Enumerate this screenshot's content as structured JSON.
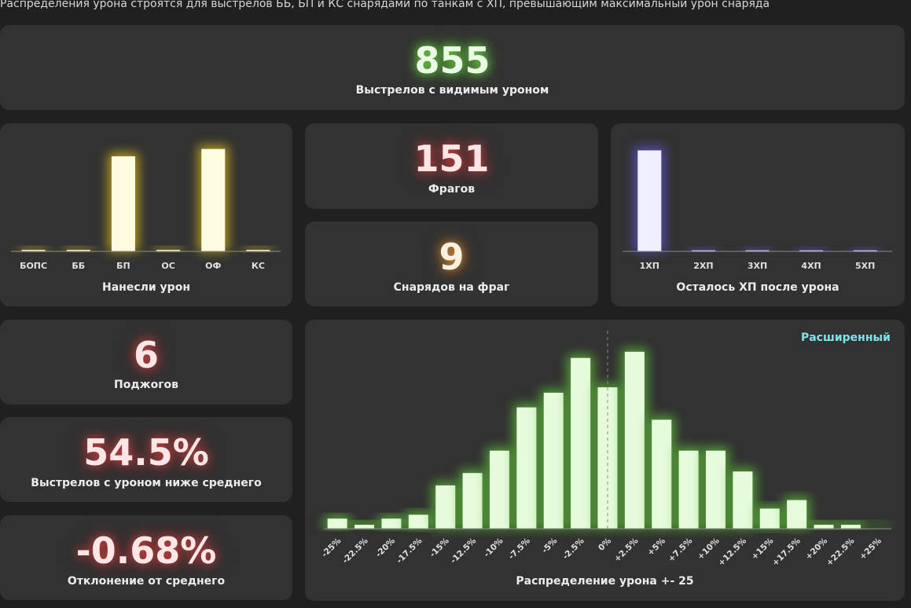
{
  "note": "Распределения урона строятся для выстрелов ББ, БП и КС снарядами по танкам с ХП, превышающим максимальный урон снаряда",
  "shots_visible": {
    "value": "855",
    "label": "Выстрелов с видимым уроном"
  },
  "frags": {
    "value": "151",
    "label": "Фрагов"
  },
  "shells_per_frag": {
    "value": "9",
    "label": "Снарядов на фраг"
  },
  "fires": {
    "value": "6",
    "label": "Поджогов"
  },
  "below_avg": {
    "value": "54.5%",
    "label": "Выстрелов с уроном ниже среднего"
  },
  "deviation": {
    "value": "-0.68%",
    "label": "Отклонение от среднего"
  },
  "dist_toggle": "Расширенный",
  "colors": {
    "card": "#323232",
    "bg": "#202020",
    "yellow_bar": "#fffbe0",
    "blue_bar": "#eef0ff",
    "green_bar": "#e6fbdc",
    "link": "#7fe3ea"
  },
  "chart_data": [
    {
      "type": "bar",
      "title": "Нанесли урон",
      "categories": [
        "БОПС",
        "ББ",
        "БП",
        "ОС",
        "ОФ",
        "КС"
      ],
      "values": [
        2,
        2,
        130,
        2,
        140,
        2
      ],
      "ylim": [
        0,
        145
      ]
    },
    {
      "type": "bar",
      "title": "Осталось ХП после урона",
      "categories": [
        "1ХП",
        "2ХП",
        "3ХП",
        "4ХП",
        "5ХП"
      ],
      "values": [
        100,
        1,
        1,
        1,
        1
      ],
      "ylim": [
        0,
        105
      ]
    },
    {
      "type": "bar",
      "title": "Распределение урона +- 25",
      "categories": [
        "-25%",
        "-22.5%",
        "-20%",
        "-17.5%",
        "-15%",
        "-12.5%",
        "-10%",
        "-7.5%",
        "-5%",
        "-2.5%",
        "0%",
        "+2.5%",
        "+5%",
        "+7.5%",
        "+10%",
        "+12.5%",
        "+15%",
        "+17.5%",
        "+20%",
        "+22.5%",
        "+25%"
      ],
      "values": [
        13,
        5,
        13,
        18,
        56,
        72,
        101,
        157,
        176,
        221,
        183,
        229,
        141,
        101,
        101,
        74,
        26,
        37,
        5,
        5,
        0
      ],
      "ylim": [
        0,
        240
      ]
    }
  ]
}
